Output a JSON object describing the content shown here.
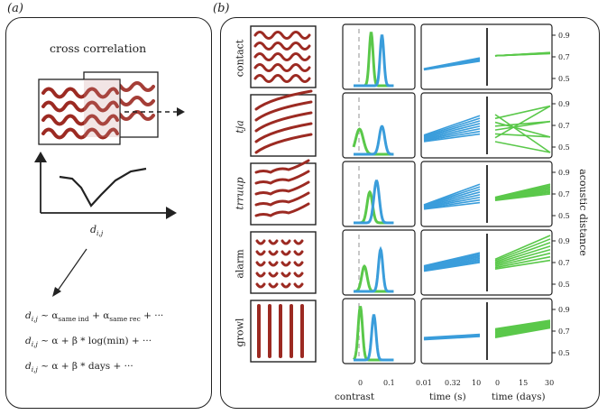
{
  "panels": {
    "a_label": "(a)",
    "b_label": "(b)"
  },
  "panel_a": {
    "title": "cross correlation",
    "axis_label_main": "d",
    "axis_label_sub": "i,j",
    "formulas": [
      {
        "lhs_main": "d",
        "lhs_sub": "i,j",
        "rhs_pre": "~ α",
        "sub1": "same ind",
        "mid": "+ α",
        "sub2": "same rec",
        "rhs_post": "+ ···"
      },
      {
        "lhs_main": "d",
        "lhs_sub": "i,j",
        "text": "~ α + β * log(min) + ···"
      },
      {
        "lhs_main": "d",
        "lhs_sub": "i,j",
        "text": "~ α + β * days + ···"
      }
    ]
  },
  "panel_b": {
    "rows": [
      {
        "label": "contact",
        "italic": false
      },
      {
        "label": "tja",
        "italic": true
      },
      {
        "label": "trruup",
        "italic": true
      },
      {
        "label": "alarm",
        "italic": false
      },
      {
        "label": "growl",
        "italic": false
      }
    ],
    "y_ticks": [
      "0.9",
      "0.7",
      "0.5"
    ],
    "y_axis_label": "acoustic distance",
    "contrast_ticks": [
      "0",
      "0.1"
    ],
    "contrast_label": "contrast",
    "time_ticks": [
      "0.01",
      "0.32",
      "10"
    ],
    "time_label": "time (s)",
    "days_ticks": [
      "0",
      "15",
      "30"
    ],
    "days_label": "time (days)"
  },
  "colors": {
    "green": "#5ac84a",
    "blue": "#3a9ddb",
    "red": "#9c2a22",
    "dash": "#bbbbbb",
    "ink": "#222222"
  }
}
